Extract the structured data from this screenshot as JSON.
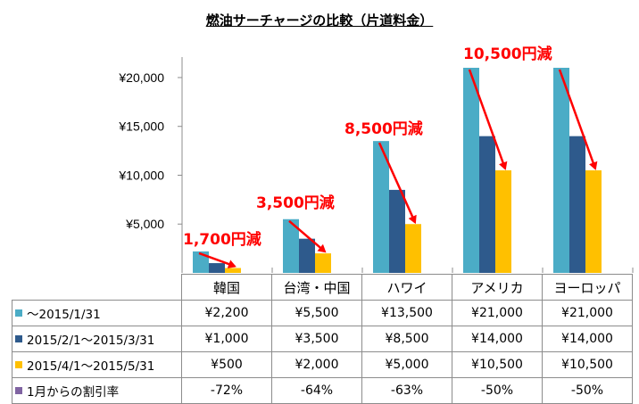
{
  "chart_data": {
    "type": "bar",
    "title": "燃油サーチャージの比較（片道料金）",
    "categories": [
      "韓国",
      "台湾・中国",
      "ハワイ",
      "アメリカ",
      "ヨーロッパ"
    ],
    "series": [
      {
        "name": "～2015/1/31",
        "color": "#4bacc6",
        "values": [
          2200,
          5500,
          13500,
          21000,
          21000
        ]
      },
      {
        "name": "2015/2/1～2015/3/31",
        "color": "#2e5a8c",
        "values": [
          1000,
          3500,
          8500,
          14000,
          14000
        ]
      },
      {
        "name": "2015/4/1～2015/5/31",
        "color": "#ffc000",
        "values": [
          500,
          2000,
          5000,
          10500,
          10500
        ]
      }
    ],
    "ylim": [
      0,
      21000
    ],
    "yticks": [
      5000,
      10000,
      15000,
      20000
    ],
    "ytick_labels": [
      "¥5,000",
      "¥10,000",
      "¥15,000",
      "¥20,000"
    ],
    "grid": false,
    "annotations": [
      "1,700円減",
      "3,500円減",
      "8,500円減",
      "10,500円減"
    ],
    "annotation_color": "#ff0000"
  },
  "table": {
    "rows": [
      {
        "label": "～2015/1/31",
        "color": "#4bacc6",
        "cells": [
          "¥2,200",
          "¥5,500",
          "¥13,500",
          "¥21,000",
          "¥21,000"
        ]
      },
      {
        "label": "2015/2/1～2015/3/31",
        "color": "#2e5a8c",
        "cells": [
          "¥1,000",
          "¥3,500",
          "¥8,500",
          "¥14,000",
          "¥14,000"
        ]
      },
      {
        "label": "2015/4/1～2015/5/31",
        "color": "#ffc000",
        "cells": [
          "¥500",
          "¥2,000",
          "¥5,000",
          "¥10,500",
          "¥10,500"
        ]
      },
      {
        "label": "1月からの割引率",
        "color": "#8064a2",
        "cells": [
          "-72%",
          "-64%",
          "-63%",
          "-50%",
          "-50%"
        ]
      }
    ]
  }
}
